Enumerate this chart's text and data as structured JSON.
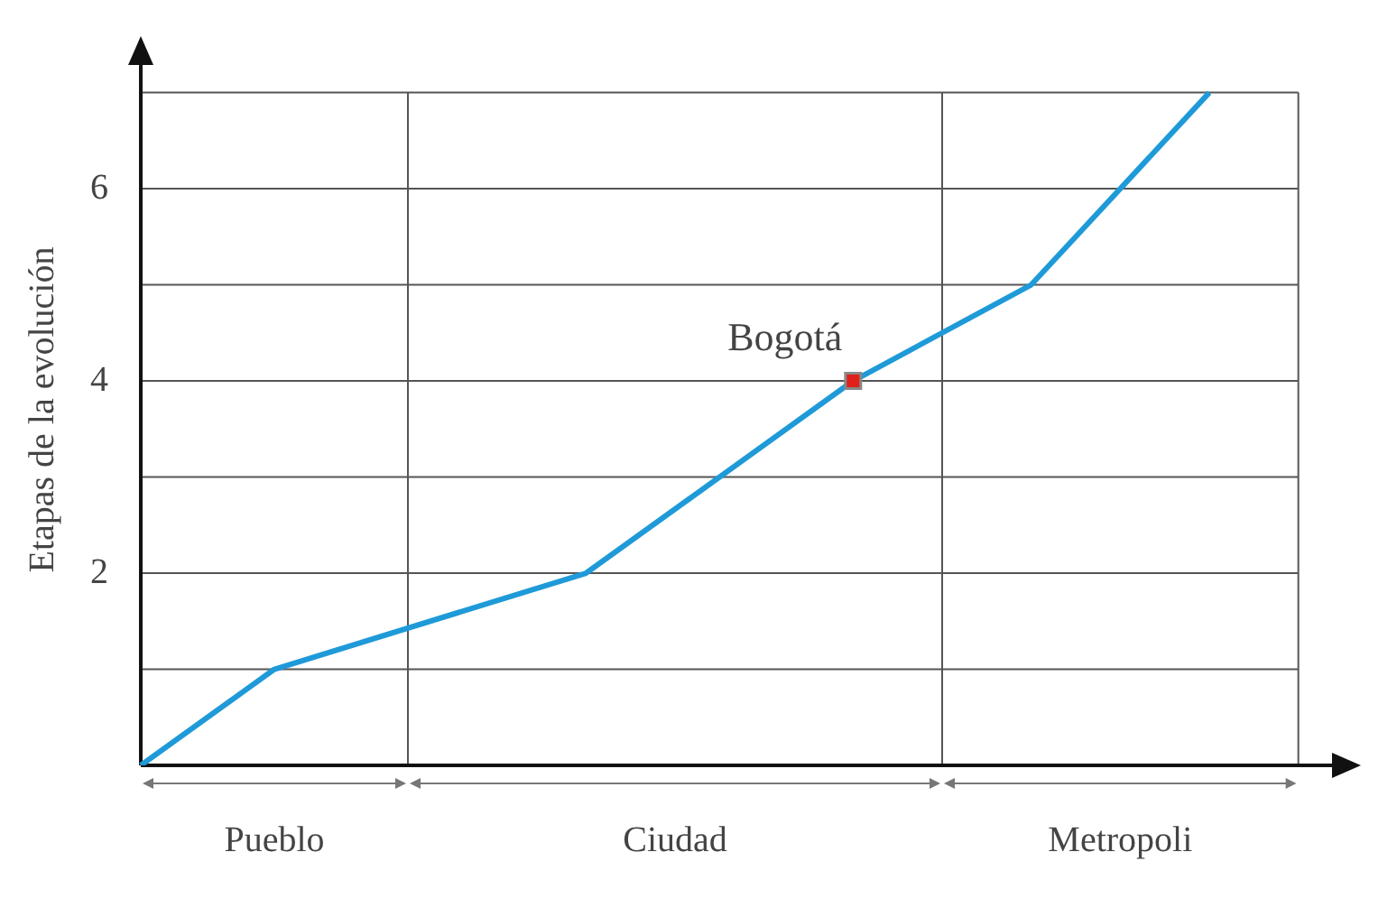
{
  "chart_data": {
    "type": "line",
    "ylabel": "Etapas de la evolución",
    "categories": [
      null,
      null,
      null,
      "Pueblo",
      null,
      null,
      null,
      null,
      null,
      null,
      null,
      null,
      "Ciudad",
      null,
      null,
      null,
      null,
      null,
      null,
      null,
      null,
      null,
      "Metropoli",
      null,
      null,
      null,
      null,
      null
    ],
    "ylim": [
      0,
      7.4
    ],
    "yticks": [
      {
        "value": 1,
        "label": null
      },
      2,
      {
        "value": 3,
        "label": null
      },
      4,
      {
        "value": 5,
        "label": null
      },
      6,
      {
        "value": 7,
        "label": null
      }
    ],
    "grid": true,
    "legend": false,
    "series": [
      {
        "color": "#1f9ad8",
        "values": [
          0,
          null,
          null,
          1,
          null,
          null,
          null,
          null,
          null,
          null,
          2,
          null,
          null,
          null,
          null,
          null,
          4,
          null,
          null,
          null,
          5,
          null,
          null,
          null,
          7,
          null,
          null,
          null
        ]
      },
      {
        "type": "scatter",
        "color": "#e0201b",
        "marker": "square",
        "values": [
          null,
          null,
          null,
          null,
          null,
          null,
          null,
          null,
          null,
          null,
          null,
          null,
          null,
          null,
          null,
          null,
          4,
          null,
          null,
          null,
          null,
          null,
          null,
          null,
          null,
          null,
          null,
          null
        ]
      }
    ],
    "annotations": [
      "Bogotá"
    ]
  }
}
